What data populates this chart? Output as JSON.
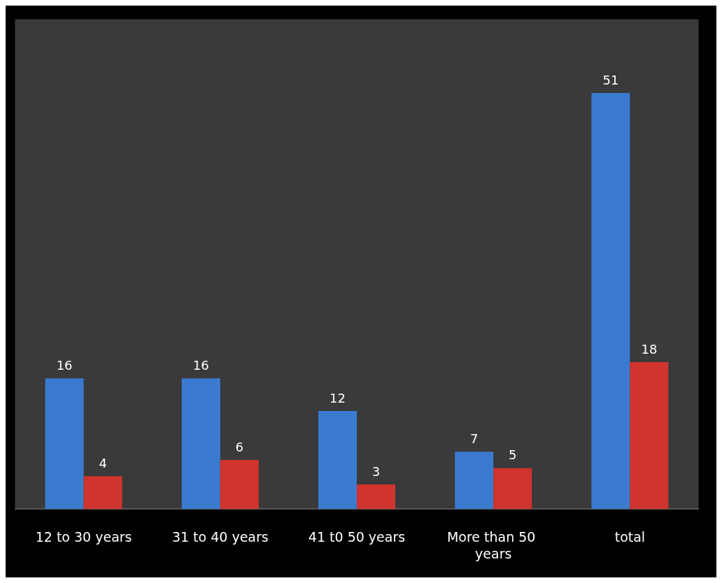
{
  "chart_data": {
    "type": "bar",
    "categories": [
      "12 to 30 years",
      "31 to 40 years",
      "41 t0 50 years",
      "More than 50 years",
      "total"
    ],
    "series": [
      {
        "color": "#3a7bd0",
        "values": [
          16,
          16,
          12,
          7,
          51
        ]
      },
      {
        "color": "#d0342c",
        "values": [
          4,
          6,
          3,
          5,
          18
        ]
      }
    ],
    "data_labels": true
  }
}
